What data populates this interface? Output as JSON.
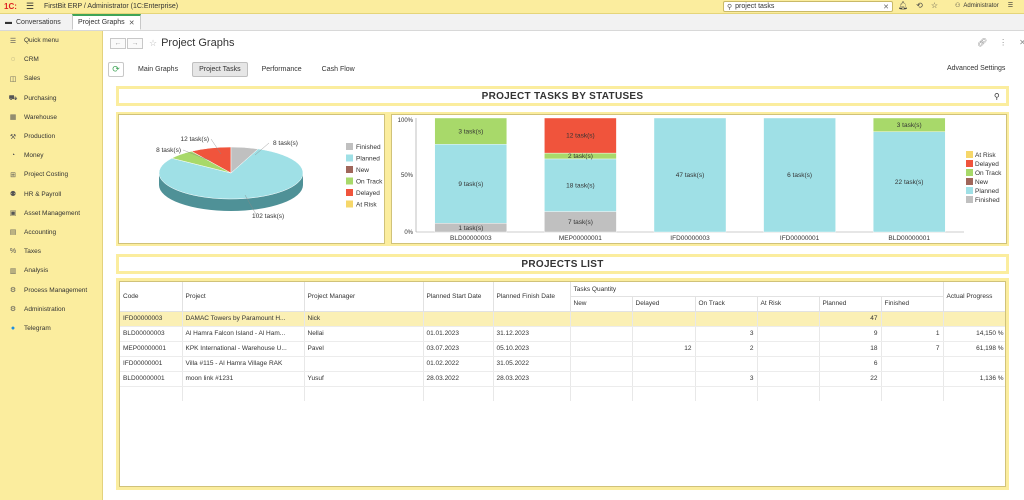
{
  "app": {
    "logo": "1С:",
    "title": "FirstBit ERP / Administrator  (1C:Enterprise)",
    "search_value": "project tasks",
    "user": "Administrator"
  },
  "open_tabs": [
    {
      "label": "Conversations"
    },
    {
      "label": "Project Graphs"
    }
  ],
  "sidebar": {
    "items": [
      {
        "label": "Quick menu",
        "icon": "menu-icon"
      },
      {
        "label": "CRM",
        "icon": "crm-icon"
      },
      {
        "label": "Sales",
        "icon": "sales-icon"
      },
      {
        "label": "Purchasing",
        "icon": "purchasing-icon"
      },
      {
        "label": "Warehouse",
        "icon": "warehouse-icon"
      },
      {
        "label": "Production",
        "icon": "production-icon"
      },
      {
        "label": "Money",
        "icon": "money-icon"
      },
      {
        "label": "Project Costing",
        "icon": "project-costing-icon"
      },
      {
        "label": "HR & Payroll",
        "icon": "hr-icon"
      },
      {
        "label": "Asset Management",
        "icon": "asset-icon"
      },
      {
        "label": "Accounting",
        "icon": "accounting-icon"
      },
      {
        "label": "Taxes",
        "icon": "taxes-icon"
      },
      {
        "label": "Analysis",
        "icon": "analysis-icon"
      },
      {
        "label": "Process Management",
        "icon": "process-icon"
      },
      {
        "label": "Administration",
        "icon": "administration-icon"
      },
      {
        "label": "Telegram",
        "icon": "telegram-icon"
      }
    ]
  },
  "page": {
    "title": "Project Graphs",
    "subtabs": [
      {
        "label": "Main Graphs"
      },
      {
        "label": "Project Tasks"
      },
      {
        "label": "Performance"
      },
      {
        "label": "Cash Flow"
      }
    ],
    "advanced_settings": "Advanced Settings",
    "chart_panel_title": "PROJECT TASKS BY STATUSES",
    "list_panel_title": "PROJECTS LIST"
  },
  "colors": {
    "Finished": "#c0c0c0",
    "Planned": "#9fe0e6",
    "New": "#a0665a",
    "On Track": "#a8d96a",
    "Delayed": "#f0543c",
    "At Risk": "#f6d76a",
    "accent": "#3fa457",
    "panel": "#fbed9e"
  },
  "chart_data": [
    {
      "type": "pie",
      "legend_position": "right",
      "legend": [
        "Finished",
        "Planned",
        "New",
        "On Track",
        "Delayed",
        "At Risk"
      ],
      "slices": [
        {
          "name": "Finished",
          "value": 8,
          "label": "8 task(s)"
        },
        {
          "name": "Planned",
          "value": 102,
          "label": "102 task(s)"
        },
        {
          "name": "On Track",
          "value": 8,
          "label": "8 task(s)"
        },
        {
          "name": "Delayed",
          "value": 12,
          "label": "12 task(s)"
        }
      ]
    },
    {
      "type": "bar",
      "stacked": true,
      "normalized": true,
      "legend_position": "right",
      "y_ticks": [
        "100%",
        "50%",
        "0%"
      ],
      "categories": [
        "BLD00000003",
        "MEP00000001",
        "IFD00000003",
        "IFD00000001",
        "BLD00000001"
      ],
      "legend": [
        "At Risk",
        "Delayed",
        "On Track",
        "New",
        "Planned",
        "Finished"
      ],
      "series": [
        {
          "name": "Finished",
          "values": [
            1,
            7,
            0,
            0,
            0
          ],
          "labels": [
            "1 task(s)",
            "7 task(s)",
            "",
            "",
            ""
          ]
        },
        {
          "name": "Planned",
          "values": [
            9,
            18,
            47,
            6,
            22
          ],
          "labels": [
            "9 task(s)",
            "18 task(s)",
            "47 task(s)",
            "6 task(s)",
            "22 task(s)"
          ]
        },
        {
          "name": "On Track",
          "values": [
            3,
            2,
            0,
            0,
            3
          ],
          "labels": [
            "3 task(s)",
            "2 task(s)",
            "",
            "",
            "3 task(s)"
          ]
        },
        {
          "name": "Delayed",
          "values": [
            0,
            12,
            0,
            0,
            0
          ],
          "labels": [
            "",
            "12 task(s)",
            "",
            "",
            ""
          ]
        }
      ]
    }
  ],
  "table": {
    "headers": {
      "code": "Code",
      "project": "Project",
      "manager": "Project Manager",
      "start": "Planned Start Date",
      "finish": "Planned Finish Date",
      "tasks_qty": "Tasks Quantity",
      "progress": "Actual Progress",
      "new": "New",
      "delayed": "Delayed",
      "on_track": "On Track",
      "at_risk": "At Risk",
      "planned": "Planned",
      "finished": "Finished"
    },
    "rows": [
      {
        "code": "IFD00000003",
        "project": "DAMAC Towers by Paramount H...",
        "manager": "Nick",
        "start": "",
        "finish": "",
        "new": "",
        "delayed": "",
        "on_track": "",
        "at_risk": "",
        "planned": "47",
        "finished": "",
        "progress": ""
      },
      {
        "code": "BLD00000003",
        "project": "Al Hamra Falcon Island - Al Ham...",
        "manager": "Nellai",
        "start": "01.01.2023",
        "finish": "31.12.2023",
        "new": "",
        "delayed": "",
        "on_track": "3",
        "at_risk": "",
        "planned": "9",
        "finished": "1",
        "progress": "14,150 %"
      },
      {
        "code": "MEP00000001",
        "project": "KPK International - Warehouse U...",
        "manager": "Pavel",
        "start": "03.07.2023",
        "finish": "05.10.2023",
        "new": "",
        "delayed": "12",
        "on_track": "2",
        "at_risk": "",
        "planned": "18",
        "finished": "7",
        "progress": "61,198 %"
      },
      {
        "code": "IFD00000001",
        "project": "Villa #115 - Al Hamra Village RAK",
        "manager": "",
        "start": "01.02.2022",
        "finish": "31.05.2022",
        "new": "",
        "delayed": "",
        "on_track": "",
        "at_risk": "",
        "planned": "6",
        "finished": "",
        "progress": ""
      },
      {
        "code": "BLD00000001",
        "project": "moon link #1231",
        "manager": "Yusuf",
        "start": "28.03.2022",
        "finish": "28.03.2023",
        "new": "",
        "delayed": "",
        "on_track": "3",
        "at_risk": "",
        "planned": "22",
        "finished": "",
        "progress": "1,136 %"
      }
    ]
  }
}
